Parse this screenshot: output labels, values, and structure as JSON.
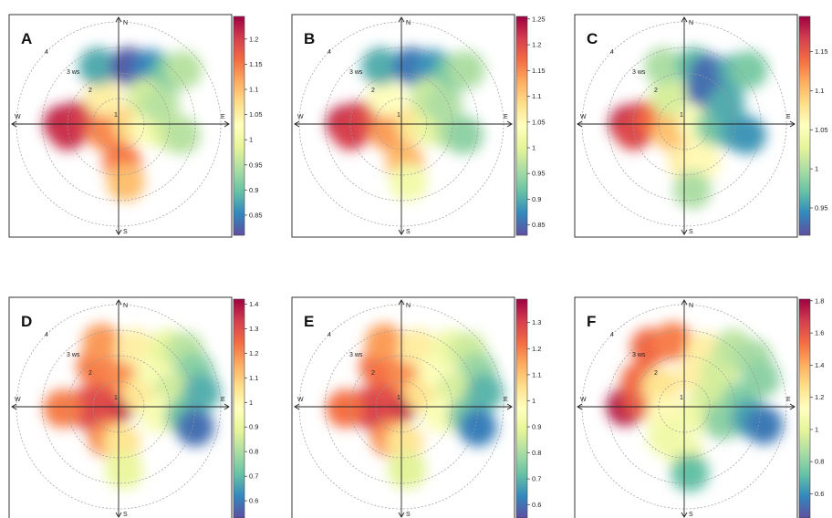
{
  "colorscale": [
    "#5e4fa2",
    "#3288bd",
    "#66c2a5",
    "#abdda4",
    "#e6f598",
    "#ffffbf",
    "#fee08b",
    "#fdae61",
    "#f46d43",
    "#d53e4f",
    "#9e0142"
  ],
  "chart_data": [
    {
      "type": "heatmap",
      "panel_label": "A",
      "directions": {
        "n": "N",
        "s": "S",
        "e": "E",
        "w": "W"
      },
      "ring_labels": [
        "1",
        "2",
        "3 ws",
        "4"
      ],
      "colorbar": {
        "min": 0.81,
        "max": 1.245,
        "ticks": [
          "0.85",
          "0.9",
          "0.95",
          "1",
          "1.05",
          "1.1",
          "1.15",
          "1.2"
        ]
      },
      "blobs": [
        {
          "ws": 2.2,
          "dir": 270,
          "v": 1.22
        },
        {
          "ws": 1.6,
          "dir": 275,
          "v": 1.22
        },
        {
          "ws": 2.0,
          "dir": 262,
          "v": 1.21
        },
        {
          "ws": 1.1,
          "dir": 280,
          "v": 1.2
        },
        {
          "ws": 0.6,
          "dir": 240,
          "v": 1.14
        },
        {
          "ws": 0.5,
          "dir": 90,
          "v": 1.08
        },
        {
          "ws": 1.2,
          "dir": 95,
          "v": 1.02
        },
        {
          "ws": 2.0,
          "dir": 98,
          "v": 0.98
        },
        {
          "ws": 2.5,
          "dir": 100,
          "v": 0.95
        },
        {
          "ws": 1.2,
          "dir": 330,
          "v": 1.05
        },
        {
          "ws": 2.4,
          "dir": 340,
          "v": 0.88
        },
        {
          "ws": 2.3,
          "dir": 10,
          "v": 0.82
        },
        {
          "ws": 2.5,
          "dir": 30,
          "v": 0.85
        },
        {
          "ws": 2.8,
          "dir": 45,
          "v": 0.9
        },
        {
          "ws": 3.3,
          "dir": 50,
          "v": 0.95
        },
        {
          "ws": 1.5,
          "dir": 45,
          "v": 0.97
        },
        {
          "ws": 1.8,
          "dir": 65,
          "v": 0.95
        },
        {
          "ws": 1.5,
          "dir": 175,
          "v": 1.15
        },
        {
          "ws": 2.3,
          "dir": 173,
          "v": 1.1
        }
      ]
    },
    {
      "type": "heatmap",
      "panel_label": "B",
      "directions": {
        "n": "N",
        "s": "S",
        "e": "E",
        "w": "W"
      },
      "ring_labels": [
        "1",
        "2",
        "3 ws",
        "4"
      ],
      "colorbar": {
        "min": 0.83,
        "max": 1.255,
        "ticks": [
          "0.85",
          "0.9",
          "0.95",
          "1",
          "1.05",
          "1.1",
          "1.15",
          "1.2",
          "1.25"
        ]
      },
      "blobs": [
        {
          "ws": 2.2,
          "dir": 270,
          "v": 1.23
        },
        {
          "ws": 1.6,
          "dir": 275,
          "v": 1.22
        },
        {
          "ws": 2.0,
          "dir": 262,
          "v": 1.21
        },
        {
          "ws": 1.1,
          "dir": 280,
          "v": 1.2
        },
        {
          "ws": 0.6,
          "dir": 240,
          "v": 1.14
        },
        {
          "ws": 0.5,
          "dir": 90,
          "v": 1.08
        },
        {
          "ws": 1.2,
          "dir": 95,
          "v": 1.01
        },
        {
          "ws": 2.0,
          "dir": 98,
          "v": 0.97
        },
        {
          "ws": 2.5,
          "dir": 100,
          "v": 0.94
        },
        {
          "ws": 1.2,
          "dir": 330,
          "v": 1.04
        },
        {
          "ws": 2.4,
          "dir": 340,
          "v": 0.9
        },
        {
          "ws": 2.3,
          "dir": 10,
          "v": 0.86
        },
        {
          "ws": 2.5,
          "dir": 30,
          "v": 0.88
        },
        {
          "ws": 2.8,
          "dir": 45,
          "v": 0.92
        },
        {
          "ws": 3.3,
          "dir": 50,
          "v": 0.96
        },
        {
          "ws": 1.5,
          "dir": 45,
          "v": 0.98
        },
        {
          "ws": 1.8,
          "dir": 65,
          "v": 0.96
        },
        {
          "ws": 1.5,
          "dir": 175,
          "v": 1.12
        },
        {
          "ws": 2.3,
          "dir": 173,
          "v": 1.02
        }
      ]
    },
    {
      "type": "heatmap",
      "panel_label": "C",
      "directions": {
        "n": "N",
        "s": "S",
        "e": "E",
        "w": "W"
      },
      "ring_labels": [
        "1",
        "2",
        "3 ws",
        "4"
      ],
      "colorbar": {
        "min": 0.915,
        "max": 1.195,
        "ticks": [
          "0.95",
          "1",
          "1.05",
          "1.1",
          "1.15"
        ]
      },
      "blobs": [
        {
          "ws": 2.2,
          "dir": 270,
          "v": 1.18
        },
        {
          "ws": 1.6,
          "dir": 275,
          "v": 1.17
        },
        {
          "ws": 2.0,
          "dir": 262,
          "v": 1.16
        },
        {
          "ws": 1.1,
          "dir": 280,
          "v": 1.14
        },
        {
          "ws": 0.6,
          "dir": 240,
          "v": 1.1
        },
        {
          "ws": 0.5,
          "dir": 90,
          "v": 1.05
        },
        {
          "ws": 1.2,
          "dir": 95,
          "v": 0.98
        },
        {
          "ws": 2.0,
          "dir": 98,
          "v": 0.96
        },
        {
          "ws": 2.5,
          "dir": 100,
          "v": 0.95
        },
        {
          "ws": 1.2,
          "dir": 330,
          "v": 1.02
        },
        {
          "ws": 2.4,
          "dir": 340,
          "v": 1.0
        },
        {
          "ws": 2.3,
          "dir": 10,
          "v": 0.97
        },
        {
          "ws": 2.2,
          "dir": 25,
          "v": 0.93
        },
        {
          "ws": 2.8,
          "dir": 45,
          "v": 0.96
        },
        {
          "ws": 3.3,
          "dir": 50,
          "v": 0.98
        },
        {
          "ws": 1.6,
          "dir": 30,
          "v": 0.93
        },
        {
          "ws": 1.8,
          "dir": 65,
          "v": 0.96
        },
        {
          "ws": 1.5,
          "dir": 175,
          "v": 1.07
        },
        {
          "ws": 1.6,
          "dir": 155,
          "v": 1.06
        },
        {
          "ws": 2.6,
          "dir": 173,
          "v": 1.0
        }
      ]
    },
    {
      "type": "heatmap",
      "panel_label": "D",
      "directions": {
        "n": "N",
        "s": "S",
        "e": "E",
        "w": "W"
      },
      "ring_labels": [
        "1",
        "2",
        "3 ws",
        "4"
      ],
      "colorbar": {
        "min": 0.53,
        "max": 1.42,
        "ticks": [
          "0.6",
          "0.7",
          "0.8",
          "0.9",
          "1",
          "1.1",
          "1.2",
          "1.3",
          "1.4"
        ]
      },
      "blobs": [
        {
          "ws": 0.2,
          "dir": 0,
          "v": 1.4
        },
        {
          "ws": 0.7,
          "dir": 270,
          "v": 1.38
        },
        {
          "ws": 1.4,
          "dir": 268,
          "v": 1.3
        },
        {
          "ws": 2.2,
          "dir": 268,
          "v": 1.22
        },
        {
          "ws": 0.9,
          "dir": 220,
          "v": 1.32
        },
        {
          "ws": 1.3,
          "dir": 200,
          "v": 1.2
        },
        {
          "ws": 1.4,
          "dir": 175,
          "v": 1.05
        },
        {
          "ws": 0.9,
          "dir": 320,
          "v": 1.3
        },
        {
          "ws": 1.8,
          "dir": 330,
          "v": 1.22
        },
        {
          "ws": 2.6,
          "dir": 345,
          "v": 1.18
        },
        {
          "ws": 1.2,
          "dir": 10,
          "v": 1.2
        },
        {
          "ws": 2.4,
          "dir": 15,
          "v": 1.02
        },
        {
          "ws": 1.0,
          "dir": 60,
          "v": 1.05
        },
        {
          "ws": 2.0,
          "dir": 45,
          "v": 0.95
        },
        {
          "ws": 3.0,
          "dir": 40,
          "v": 0.9
        },
        {
          "ws": 3.4,
          "dir": 50,
          "v": 0.82
        },
        {
          "ws": 3.3,
          "dir": 65,
          "v": 0.75
        },
        {
          "ws": 2.2,
          "dir": 75,
          "v": 0.85
        },
        {
          "ws": 1.6,
          "dir": 100,
          "v": 0.95
        },
        {
          "ws": 2.6,
          "dir": 98,
          "v": 0.72
        },
        {
          "ws": 3.3,
          "dir": 80,
          "v": 0.68
        },
        {
          "ws": 3.1,
          "dir": 105,
          "v": 0.58
        },
        {
          "ws": 2.5,
          "dir": 175,
          "v": 0.9
        }
      ]
    },
    {
      "type": "heatmap",
      "panel_label": "E",
      "directions": {
        "n": "N",
        "s": "S",
        "e": "E",
        "w": "W"
      },
      "ring_labels": [
        "1",
        "2",
        "3 ws",
        "4"
      ],
      "colorbar": {
        "min": 0.55,
        "max": 1.39,
        "ticks": [
          "0.6",
          "0.7",
          "0.8",
          "0.9",
          "1",
          "1.1",
          "1.2",
          "1.3"
        ]
      },
      "blobs": [
        {
          "ws": 0.2,
          "dir": 0,
          "v": 1.36
        },
        {
          "ws": 0.7,
          "dir": 270,
          "v": 1.36
        },
        {
          "ws": 1.4,
          "dir": 268,
          "v": 1.3
        },
        {
          "ws": 2.2,
          "dir": 268,
          "v": 1.22
        },
        {
          "ws": 0.9,
          "dir": 220,
          "v": 1.3
        },
        {
          "ws": 1.3,
          "dir": 200,
          "v": 1.18
        },
        {
          "ws": 1.4,
          "dir": 175,
          "v": 1.04
        },
        {
          "ws": 0.9,
          "dir": 320,
          "v": 1.28
        },
        {
          "ws": 1.8,
          "dir": 330,
          "v": 1.22
        },
        {
          "ws": 2.6,
          "dir": 345,
          "v": 1.16
        },
        {
          "ws": 1.2,
          "dir": 10,
          "v": 1.18
        },
        {
          "ws": 2.4,
          "dir": 15,
          "v": 1.02
        },
        {
          "ws": 1.0,
          "dir": 60,
          "v": 1.05
        },
        {
          "ws": 2.0,
          "dir": 45,
          "v": 0.96
        },
        {
          "ws": 3.0,
          "dir": 40,
          "v": 0.92
        },
        {
          "ws": 3.4,
          "dir": 50,
          "v": 0.85
        },
        {
          "ws": 3.3,
          "dir": 65,
          "v": 0.78
        },
        {
          "ws": 2.2,
          "dir": 75,
          "v": 0.86
        },
        {
          "ws": 1.6,
          "dir": 100,
          "v": 0.95
        },
        {
          "ws": 2.6,
          "dir": 98,
          "v": 0.74
        },
        {
          "ws": 3.3,
          "dir": 80,
          "v": 0.7
        },
        {
          "ws": 3.1,
          "dir": 105,
          "v": 0.62
        },
        {
          "ws": 2.5,
          "dir": 175,
          "v": 0.88
        }
      ]
    },
    {
      "type": "heatmap",
      "panel_label": "F",
      "directions": {
        "n": "N",
        "s": "S",
        "e": "E",
        "w": "W"
      },
      "ring_labels": [
        "1",
        "2",
        "3 ws",
        "4"
      ],
      "colorbar": {
        "min": 0.45,
        "max": 1.81,
        "ticks": [
          "0.6",
          "0.8",
          "1",
          "1.2",
          "1.4",
          "1.6",
          "1.8"
        ]
      },
      "blobs": [
        {
          "ws": 2.3,
          "dir": 270,
          "v": 1.75
        },
        {
          "ws": 1.7,
          "dir": 278,
          "v": 1.6
        },
        {
          "ws": 2.0,
          "dir": 300,
          "v": 1.55
        },
        {
          "ws": 2.7,
          "dir": 330,
          "v": 1.55
        },
        {
          "ws": 2.6,
          "dir": 350,
          "v": 1.5
        },
        {
          "ws": 1.2,
          "dir": 310,
          "v": 1.25
        },
        {
          "ws": 0.8,
          "dir": 250,
          "v": 1.15
        },
        {
          "ws": 1.4,
          "dir": 210,
          "v": 1.05
        },
        {
          "ws": 1.8,
          "dir": 180,
          "v": 1.05
        },
        {
          "ws": 0.6,
          "dir": 120,
          "v": 1.05
        },
        {
          "ws": 1.3,
          "dir": 20,
          "v": 1.2
        },
        {
          "ws": 2.3,
          "dir": 20,
          "v": 1.2
        },
        {
          "ws": 1.2,
          "dir": 70,
          "v": 0.95
        },
        {
          "ws": 2.0,
          "dir": 45,
          "v": 0.95
        },
        {
          "ws": 3.0,
          "dir": 40,
          "v": 0.9
        },
        {
          "ws": 3.3,
          "dir": 55,
          "v": 0.85
        },
        {
          "ws": 3.2,
          "dir": 70,
          "v": 0.8
        },
        {
          "ws": 2.2,
          "dir": 85,
          "v": 0.78
        },
        {
          "ws": 1.6,
          "dir": 110,
          "v": 0.8
        },
        {
          "ws": 2.6,
          "dir": 100,
          "v": 0.65
        },
        {
          "ws": 3.2,
          "dir": 103,
          "v": 0.55
        },
        {
          "ws": 2.6,
          "dir": 175,
          "v": 0.72
        }
      ]
    }
  ]
}
